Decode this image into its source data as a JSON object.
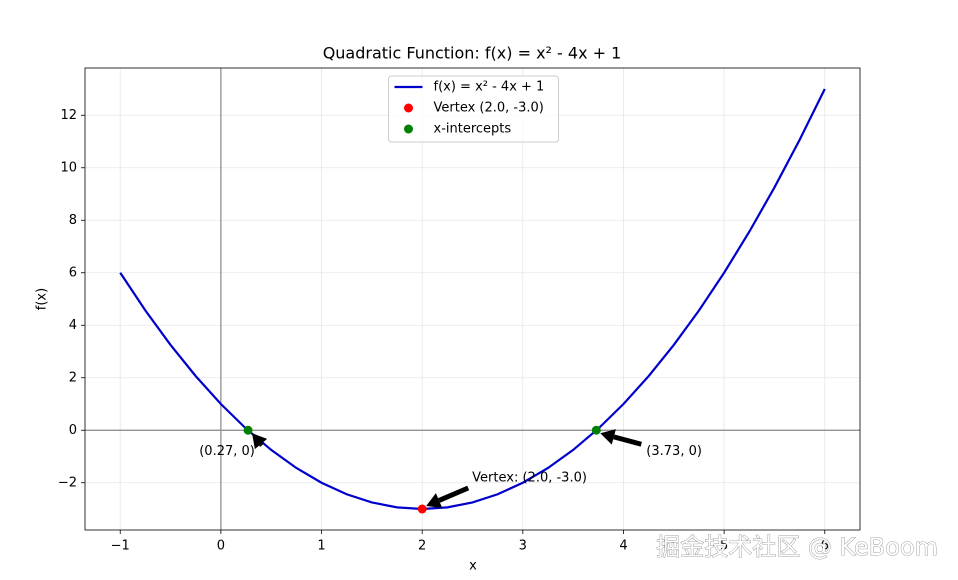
{
  "chart_data": {
    "type": "line",
    "title": "Quadratic Function: f(x) = x² - 4x + 1",
    "xlabel": "x",
    "ylabel": "f(x)",
    "xlim": [
      -1.35,
      6.35
    ],
    "ylim": [
      -3.8,
      13.8
    ],
    "xticks": [
      {
        "value": -1,
        "label": "−1"
      },
      0,
      1,
      2,
      3,
      4,
      5,
      6
    ],
    "yticks": [
      {
        "value": -2,
        "label": "−2"
      },
      0,
      2,
      4,
      6,
      8,
      10,
      12
    ],
    "grid": true,
    "legend": "upper center",
    "series": [
      {
        "name": "f(x) = x² - 4x + 1",
        "type": "line",
        "color": "#0000cc",
        "x": [
          -1,
          -0.75,
          -0.5,
          -0.25,
          0,
          0.25,
          0.5,
          0.75,
          1,
          1.25,
          1.5,
          1.75,
          2,
          2.25,
          2.5,
          2.75,
          3,
          3.25,
          3.5,
          3.75,
          4,
          4.25,
          4.5,
          4.75,
          5,
          5.25,
          5.5,
          5.75,
          6
        ],
        "values": [
          6,
          4.5625,
          3.25,
          2.0625,
          1,
          0.0625,
          -0.75,
          -1.4375,
          -2,
          -2.4375,
          -2.75,
          -2.9375,
          -3,
          -2.9375,
          -2.75,
          -2.4375,
          -2,
          -1.4375,
          -0.75,
          0.0625,
          1,
          2.0625,
          3.25,
          4.5625,
          6,
          7.5625,
          9.25,
          11.0625,
          13
        ]
      },
      {
        "name": "Vertex (2.0, -3.0)",
        "type": "scatter",
        "color": "#ff0000",
        "x": [
          2
        ],
        "values": [
          -3
        ]
      },
      {
        "name": "x-intercepts",
        "type": "scatter",
        "color": "#008000",
        "x": [
          0.27,
          3.73
        ],
        "values": [
          0,
          0
        ]
      }
    ],
    "annotations": [
      {
        "text": "Vertex: (2.0, -3.0)"
      },
      {
        "text": "(0.27, 0)"
      },
      {
        "text": "(3.73, 0)"
      }
    ],
    "watermark": "掘金技术社区 @ KeBoom"
  }
}
